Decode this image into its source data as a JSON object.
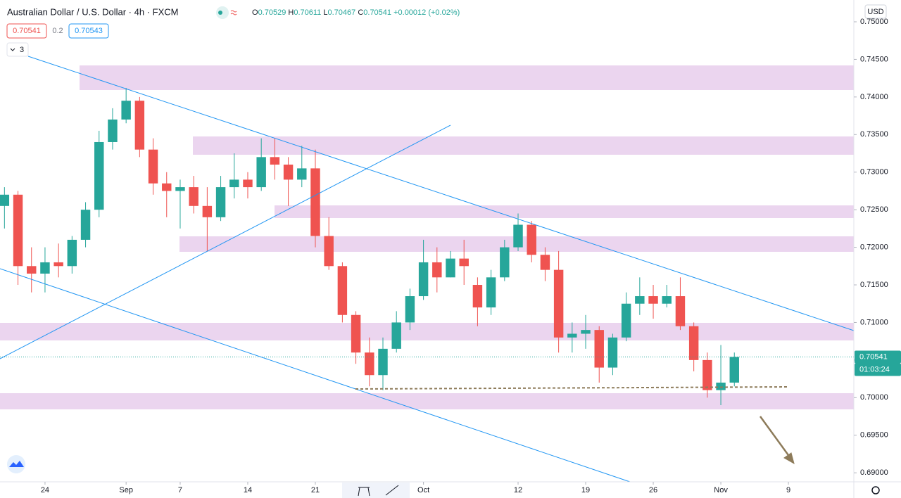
{
  "chart_data": {
    "type": "candlestick",
    "title": "Australian Dollar / U.S. Dollar · 4h · FXCM",
    "ohlc_legend": [
      "O",
      "0.70529",
      "H",
      "0.70611",
      "L",
      "0.70467",
      "C",
      "0.70541",
      "+0.00012 (+0.02%)"
    ],
    "trade_bar": [
      "0.70541",
      "0.2",
      "0.70543"
    ],
    "indicator_count": "3",
    "currency": "USD",
    "countdown": "01:03:24",
    "up_color": "#26a69a",
    "down_color": "#ef5350",
    "x": [
      -3,
      -2,
      -1,
      0,
      1,
      2,
      3,
      4,
      5,
      6,
      7,
      8,
      9,
      10,
      11,
      12,
      13,
      14,
      15,
      16,
      17,
      18,
      19,
      20,
      21,
      22,
      23,
      24,
      25,
      26,
      27,
      28,
      29,
      30,
      31,
      32,
      33,
      34,
      35,
      36,
      37,
      38,
      39,
      40,
      41,
      42,
      43,
      44,
      45,
      46,
      47,
      48,
      49,
      50,
      51
    ],
    "open": [
      0.7255,
      0.727,
      0.7175,
      0.7165,
      0.718,
      0.7175,
      0.721,
      0.725,
      0.734,
      0.737,
      0.7395,
      0.733,
      0.7285,
      0.7275,
      0.728,
      0.7255,
      0.724,
      0.728,
      0.729,
      0.728,
      0.732,
      0.731,
      0.729,
      0.7305,
      0.7215,
      0.7175,
      0.711,
      0.706,
      0.703,
      0.7065,
      0.71,
      0.7135,
      0.718,
      0.716,
      0.7185,
      0.715,
      0.712,
      0.716,
      0.72,
      0.723,
      0.719,
      0.717,
      0.708,
      0.7085,
      0.709,
      0.704,
      0.708,
      0.7125,
      0.7135,
      0.7125,
      0.7135,
      0.7095,
      0.705,
      0.701,
      0.702
    ],
    "high": [
      0.728,
      0.7275,
      0.72,
      0.72,
      0.7205,
      0.7215,
      0.726,
      0.7355,
      0.7385,
      0.7412,
      0.74,
      0.7345,
      0.73,
      0.729,
      0.7295,
      0.728,
      0.7295,
      0.7325,
      0.73,
      0.7345,
      0.7345,
      0.732,
      0.7335,
      0.733,
      0.724,
      0.718,
      0.7115,
      0.708,
      0.708,
      0.7115,
      0.7145,
      0.721,
      0.72,
      0.7195,
      0.721,
      0.716,
      0.717,
      0.721,
      0.7245,
      0.7235,
      0.72,
      0.7195,
      0.71,
      0.711,
      0.7095,
      0.7085,
      0.714,
      0.716,
      0.715,
      0.715,
      0.716,
      0.71,
      0.706,
      0.707,
      0.706
    ],
    "low": [
      0.7225,
      0.715,
      0.714,
      0.714,
      0.716,
      0.7165,
      0.72,
      0.724,
      0.733,
      0.7365,
      0.732,
      0.727,
      0.724,
      0.7225,
      0.7245,
      0.7195,
      0.7235,
      0.7265,
      0.7265,
      0.7275,
      0.729,
      0.7255,
      0.728,
      0.72,
      0.717,
      0.71,
      0.7045,
      0.7015,
      0.701,
      0.706,
      0.709,
      0.713,
      0.714,
      0.716,
      0.715,
      0.7095,
      0.711,
      0.7155,
      0.7195,
      0.718,
      0.7155,
      0.706,
      0.706,
      0.7065,
      0.702,
      0.703,
      0.7075,
      0.711,
      0.7105,
      0.712,
      0.709,
      0.7035,
      0.7,
      0.699,
      0.7015
    ],
    "close": [
      0.727,
      0.7175,
      0.7165,
      0.718,
      0.7175,
      0.721,
      0.725,
      0.734,
      0.737,
      0.7395,
      0.733,
      0.7285,
      0.7275,
      0.728,
      0.7255,
      0.724,
      0.728,
      0.729,
      0.728,
      0.732,
      0.731,
      0.729,
      0.7305,
      0.7215,
      0.7175,
      0.711,
      0.706,
      0.703,
      0.7065,
      0.71,
      0.7135,
      0.718,
      0.716,
      0.7185,
      0.7175,
      0.712,
      0.716,
      0.72,
      0.723,
      0.719,
      0.717,
      0.708,
      0.7085,
      0.709,
      0.704,
      0.708,
      0.7125,
      0.7135,
      0.7125,
      0.7135,
      0.7095,
      0.705,
      0.701,
      0.702,
      0.70541
    ],
    "xlim": [
      -3.33,
      59.84
    ],
    "xticks": [
      {
        "value": 0,
        "label": "24"
      },
      {
        "value": 6,
        "label": "Sep"
      },
      {
        "value": 10,
        "label": "7"
      },
      {
        "value": 15,
        "label": "14"
      },
      {
        "value": 20,
        "label": "21"
      },
      {
        "value": 28,
        "label": "Oct"
      },
      {
        "value": 35,
        "label": "12"
      },
      {
        "value": 40,
        "label": "19"
      },
      {
        "value": 45,
        "label": "26"
      },
      {
        "value": 50,
        "label": "Nov"
      },
      {
        "value": 55,
        "label": "9"
      }
    ],
    "ylim": [
      0.6888,
      0.7529
    ],
    "yticks": [
      {
        "value": 0.69,
        "label": "0.69000"
      },
      {
        "value": 0.695,
        "label": "0.69500"
      },
      {
        "value": 0.7,
        "label": "0.70000"
      },
      {
        "value": 0.705,
        "label": "0.70500"
      },
      {
        "value": 0.71,
        "label": "0.71000"
      },
      {
        "value": 0.715,
        "label": "0.71500"
      },
      {
        "value": 0.72,
        "label": "0.72000"
      },
      {
        "value": 0.725,
        "label": "0.72500"
      },
      {
        "value": 0.73,
        "label": "0.73000"
      },
      {
        "value": 0.735,
        "label": "0.73500"
      },
      {
        "value": 0.74,
        "label": "0.74000"
      },
      {
        "value": 0.745,
        "label": "0.74500"
      },
      {
        "value": 0.75,
        "label": "0.75000"
      }
    ],
    "grid": false
  }
}
